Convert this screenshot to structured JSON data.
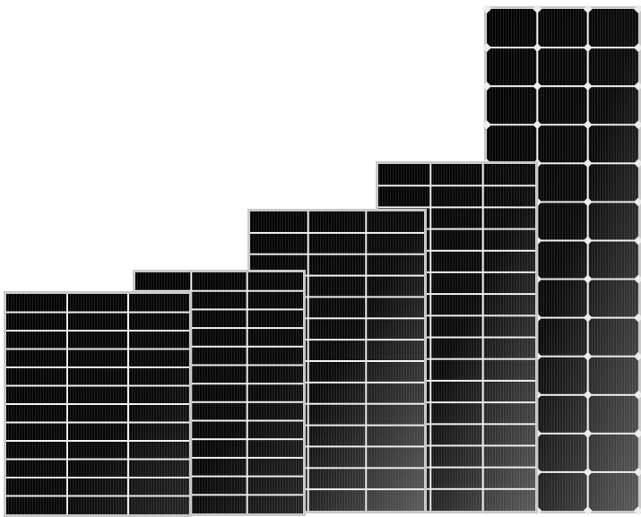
{
  "scene": {
    "subject": "solar-panels",
    "panel_count": 5,
    "background_color": "#ffffff",
    "frame_color": "#c9c9c9",
    "cell_color_dark": "#050505",
    "cell_color_light": "#5a5a5a",
    "busbar_color": "#ededed"
  },
  "panels": [
    {
      "name": "panel-1",
      "columns": 3,
      "rows": 12,
      "cell_shape": "rect",
      "shading": "light"
    },
    {
      "name": "panel-2",
      "columns": 3,
      "rows": 13,
      "cell_shape": "rect",
      "shading": "light"
    },
    {
      "name": "panel-3",
      "columns": 3,
      "rows": 14,
      "cell_shape": "rect",
      "shading": "strong"
    },
    {
      "name": "panel-4",
      "columns": 3,
      "rows": 16,
      "cell_shape": "rect",
      "shading": "strong"
    },
    {
      "name": "panel-5",
      "columns": 3,
      "rows": 13,
      "cell_shape": "chamfered",
      "shading": "strong"
    }
  ]
}
